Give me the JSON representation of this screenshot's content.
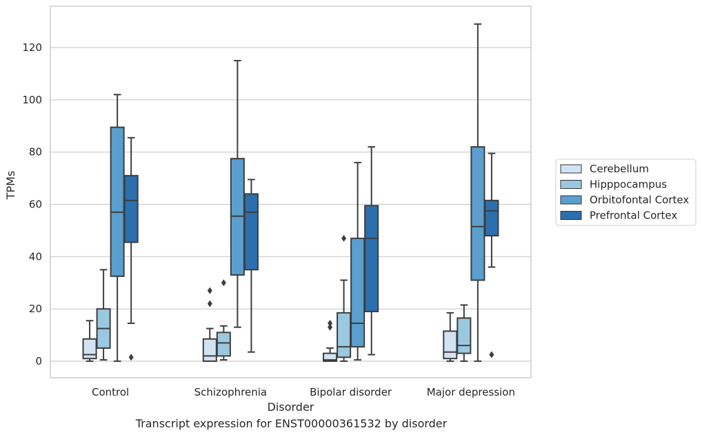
{
  "caption": "Transcript expression for ENST00000361532 by disorder",
  "chart_data": {
    "type": "box",
    "xlabel": "Disorder",
    "ylabel": "TPMs",
    "ylim": [
      -6,
      135
    ],
    "yticks": [
      0,
      20,
      40,
      60,
      80,
      100,
      120
    ],
    "grid": true,
    "legend_position": "right",
    "categories": [
      "Control",
      "Schizophrenia",
      "Bipolar disorder",
      "Major depression"
    ],
    "series": [
      {
        "name": "Cerebellum",
        "color": "#d1e2f2",
        "boxes": [
          {
            "whislo": 0,
            "q1": 1,
            "med": 2.5,
            "q3": 8.5,
            "whishi": 15.5,
            "fliers": []
          },
          {
            "whislo": 0,
            "q1": 0,
            "med": 2,
            "q3": 8.5,
            "whishi": 12.5,
            "fliers": [
              22,
              27
            ]
          },
          {
            "whislo": 0,
            "q1": 0,
            "med": 0.5,
            "q3": 3,
            "whishi": 5,
            "fliers": [
              13,
              14.5
            ]
          },
          {
            "whislo": 0,
            "q1": 1,
            "med": 3.5,
            "q3": 11.5,
            "whishi": 18.5,
            "fliers": []
          }
        ]
      },
      {
        "name": "Hipppocampus",
        "color": "#9ac8e0",
        "boxes": [
          {
            "whislo": 0.5,
            "q1": 5,
            "med": 12.5,
            "q3": 20,
            "whishi": 35,
            "fliers": []
          },
          {
            "whislo": 0.5,
            "q1": 2,
            "med": 7,
            "q3": 11,
            "whishi": 13.5,
            "fliers": [
              30
            ]
          },
          {
            "whislo": 0,
            "q1": 1.5,
            "med": 5.5,
            "q3": 18.5,
            "whishi": 31,
            "fliers": [
              47
            ]
          },
          {
            "whislo": 0,
            "q1": 3,
            "med": 6,
            "q3": 16.5,
            "whishi": 21.5,
            "fliers": []
          }
        ]
      },
      {
        "name": "Orbitofontal Cortex",
        "color": "#5a9fcd",
        "boxes": [
          {
            "whislo": 0,
            "q1": 32.5,
            "med": 57,
            "q3": 89.5,
            "whishi": 102,
            "fliers": []
          },
          {
            "whislo": 13,
            "q1": 33,
            "med": 55.5,
            "q3": 77.5,
            "whishi": 115,
            "fliers": []
          },
          {
            "whislo": 0.5,
            "q1": 5.5,
            "med": 14.5,
            "q3": 47,
            "whishi": 76,
            "fliers": []
          },
          {
            "whislo": 0,
            "q1": 31,
            "med": 51.5,
            "q3": 82,
            "whishi": 129,
            "fliers": []
          }
        ]
      },
      {
        "name": "Prefrontal Cortex",
        "color": "#2c6fae",
        "boxes": [
          {
            "whislo": 14.5,
            "q1": 45.5,
            "med": 61.5,
            "q3": 71,
            "whishi": 85.5,
            "fliers": [
              1.5
            ]
          },
          {
            "whislo": 3.5,
            "q1": 35,
            "med": 57,
            "q3": 64,
            "whishi": 69.5,
            "fliers": []
          },
          {
            "whislo": 2.5,
            "q1": 19,
            "med": 47,
            "q3": 59.5,
            "whishi": 82,
            "fliers": []
          },
          {
            "whislo": 36,
            "q1": 48,
            "med": 57.5,
            "q3": 61.5,
            "whishi": 79.5,
            "fliers": [
              2.5
            ]
          }
        ]
      }
    ]
  }
}
